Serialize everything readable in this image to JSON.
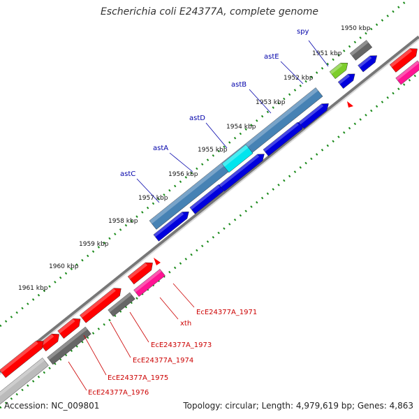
{
  "title": "Escherichia coli E24377A, complete genome",
  "footer": {
    "accession": "Accession: NC_009801",
    "topology": "Topology: circular; Length: 4,979,619 bp; Genes: 4,863"
  },
  "kbp_ticks": [
    "1950 kbp",
    "1951 kbp",
    "1952 kbp",
    "1953 kbp",
    "1954 kbp",
    "1955 kbp",
    "1956 kbp",
    "1957 kbp",
    "1958 kbp",
    "1959 kbp",
    "1960 kbp",
    "1961 kbp"
  ],
  "gene_labels_upper": [
    "spy",
    "astE",
    "astB",
    "astD",
    "astA",
    "astC"
  ],
  "gene_labels_lower": [
    "EcE24377A_1971",
    "xth",
    "EcE24377A_1973",
    "EcE24377A_1974",
    "EcE24377A_1975",
    "EcE24377A_1976"
  ],
  "colors": {
    "backbone": "#777777",
    "tick_dots": "#1a8a1a",
    "blue_gene": "#0000dd",
    "steel_gene": "#4682b4",
    "cyan_gene": "#00e5ee",
    "red_gene": "#ff0000",
    "magenta_gene": "#ff1493",
    "gray_gene": "#666666",
    "light_gray_gene": "#bbbbbb",
    "green_gene": "#7ccd2a",
    "upper_label": "#0000aa",
    "lower_label": "#cc0000"
  }
}
